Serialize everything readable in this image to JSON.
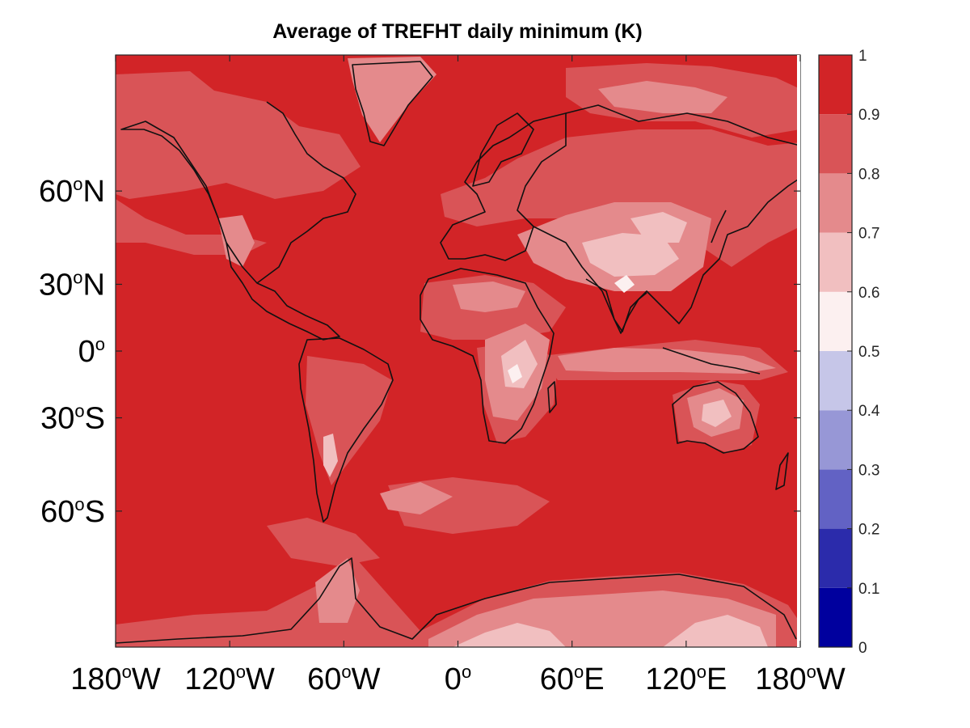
{
  "title": "Average of TREFHT daily minimum (K)",
  "y_ticks": [
    {
      "num": "60",
      "deg": "o",
      "hem": "N",
      "lat": 60
    },
    {
      "num": "30",
      "deg": "o",
      "hem": "N",
      "lat": 30
    },
    {
      "num": "0",
      "deg": "o",
      "hem": "",
      "lat": 0
    },
    {
      "num": "30",
      "deg": "o",
      "hem": "S",
      "lat": -30
    },
    {
      "num": "60",
      "deg": "o",
      "hem": "S",
      "lat": -60
    }
  ],
  "x_ticks": [
    {
      "num": "180",
      "deg": "o",
      "hem": "W",
      "lon": -180
    },
    {
      "num": "120",
      "deg": "o",
      "hem": "W",
      "lon": -120
    },
    {
      "num": "60",
      "deg": "o",
      "hem": "W",
      "lon": -60
    },
    {
      "num": "0",
      "deg": "o",
      "hem": "",
      "lon": 0
    },
    {
      "num": "60",
      "deg": "o",
      "hem": "E",
      "lon": 60
    },
    {
      "num": "120",
      "deg": "o",
      "hem": "E",
      "lon": 120
    },
    {
      "num": "180",
      "deg": "o",
      "hem": "W",
      "lon": 180
    }
  ],
  "colorbar": {
    "ticks": [
      "0",
      "0.1",
      "0.2",
      "0.3",
      "0.4",
      "0.5",
      "0.6",
      "0.7",
      "0.8",
      "0.9",
      "1"
    ],
    "levels": [
      {
        "from": 0.0,
        "to": 0.1,
        "color": "#00009e"
      },
      {
        "from": 0.1,
        "to": 0.2,
        "color": "#2b2bab"
      },
      {
        "from": 0.2,
        "to": 0.3,
        "color": "#6262c4"
      },
      {
        "from": 0.3,
        "to": 0.4,
        "color": "#9797d6"
      },
      {
        "from": 0.4,
        "to": 0.5,
        "color": "#c6c6e8"
      },
      {
        "from": 0.5,
        "to": 0.6,
        "color": "#fcf0f0"
      },
      {
        "from": 0.6,
        "to": 0.7,
        "color": "#f1bfc0"
      },
      {
        "from": 0.7,
        "to": 0.8,
        "color": "#e48a8c"
      },
      {
        "from": 0.8,
        "to": 0.9,
        "color": "#d95457"
      },
      {
        "from": 0.9,
        "to": 1.0,
        "color": "#d22427"
      }
    ]
  },
  "map": {
    "projection": "mercator",
    "lon_range": [
      -180,
      180
    ],
    "lat_range": [
      -80,
      80
    ],
    "background_color": "#d22427"
  }
}
